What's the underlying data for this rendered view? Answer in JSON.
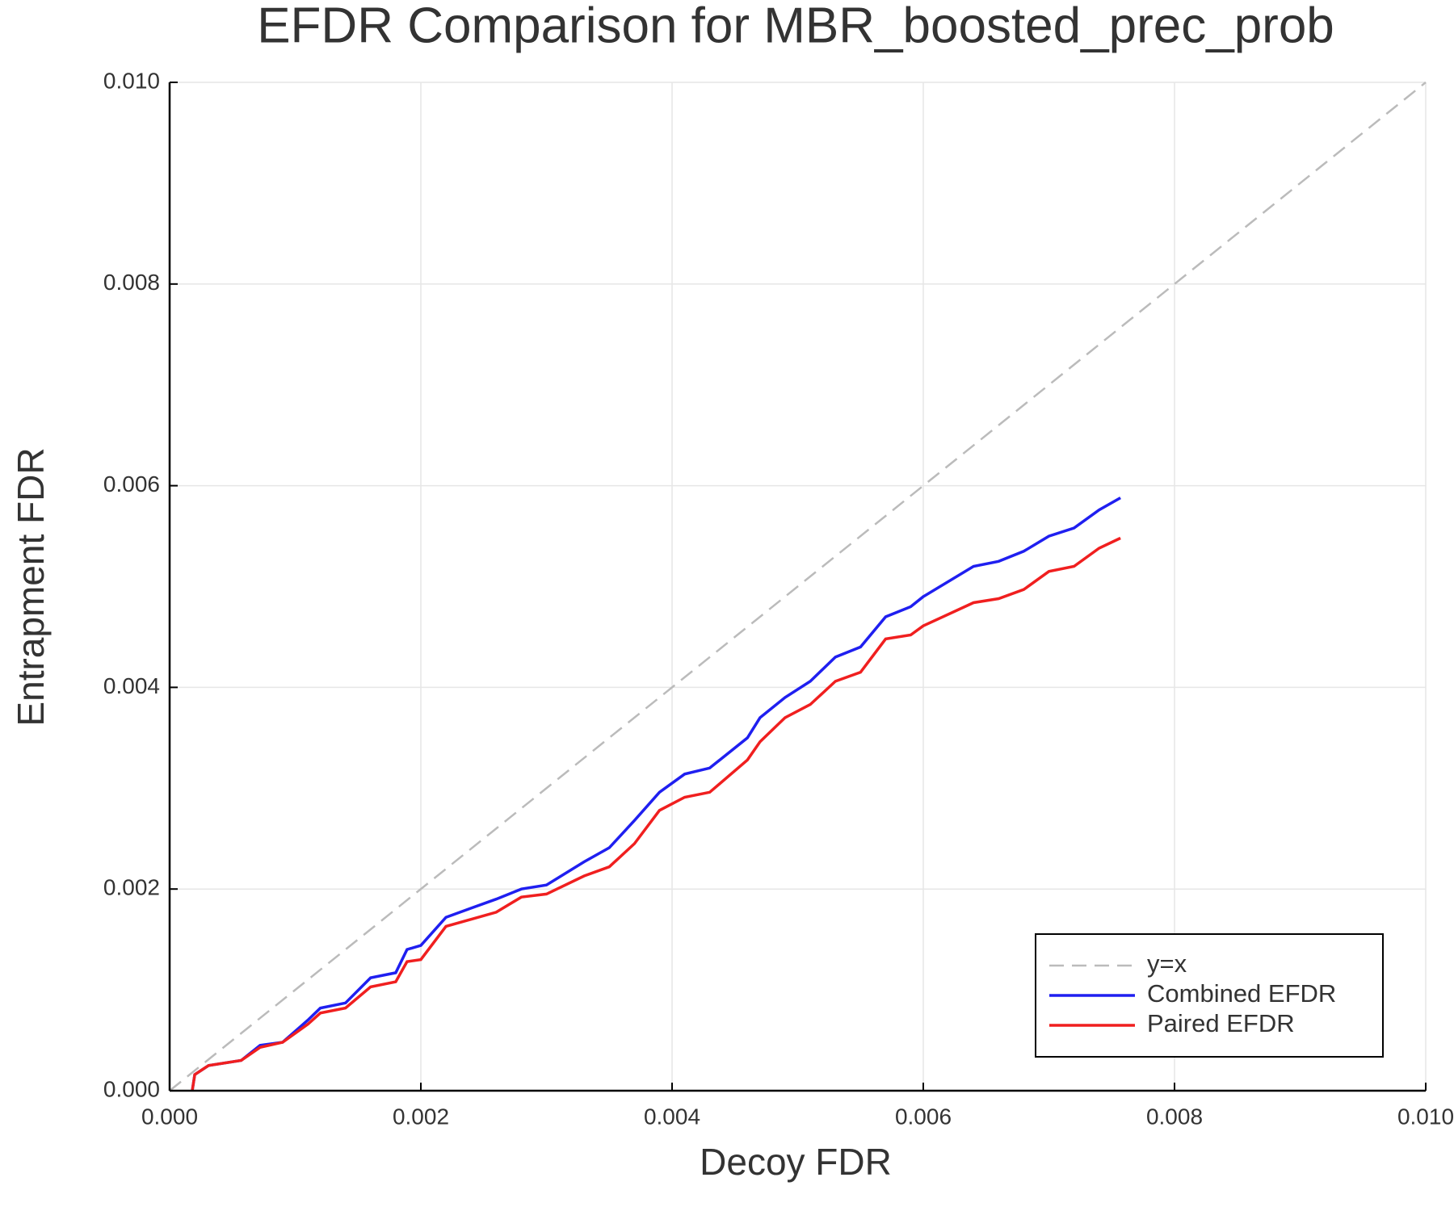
{
  "chart_data": {
    "type": "line",
    "title": "EFDR Comparison for MBR_boosted_prec_prob",
    "x_label": "Decoy FDR",
    "y_label": "Entrapment FDR",
    "xlim": [
      0,
      0.01
    ],
    "ylim": [
      0,
      0.01
    ],
    "xticks": [
      {
        "value": 0,
        "label": "0.000"
      },
      0.002,
      0.004,
      0.006,
      0.008,
      {
        "value": 0.01,
        "label": "0.010"
      }
    ],
    "yticks": [
      {
        "value": 0,
        "label": "0.000"
      },
      0.002,
      0.004,
      0.006,
      0.008,
      {
        "value": 0.01,
        "label": "0.010"
      }
    ],
    "grid": true,
    "legend": "lower right",
    "series": [
      {
        "name": "y=x",
        "color": "#bbbbbb",
        "dashed": true,
        "x": [
          0,
          0.01
        ],
        "values": [
          0,
          0.01
        ]
      },
      {
        "name": "Combined EFDR",
        "color": "#1f1ff0",
        "x": [
          0.00018,
          0.0002,
          0.00031,
          0.00057,
          0.00072,
          0.0009,
          0.0011,
          0.0012,
          0.0014,
          0.0016,
          0.0018,
          0.00189,
          0.002,
          0.0022,
          0.0024,
          0.0026,
          0.0028,
          0.003,
          0.0033,
          0.0035,
          0.0037,
          0.0039,
          0.0041,
          0.0043,
          0.0046,
          0.0047,
          0.0049,
          0.0051,
          0.0053,
          0.0055,
          0.0057,
          0.0059,
          0.006,
          0.0064,
          0.0066,
          0.0068,
          0.007,
          0.0072,
          0.0074,
          0.00757
        ],
        "values": [
          0,
          0.00016,
          0.00025,
          0.0003,
          0.00045,
          0.00048,
          0.0007,
          0.00082,
          0.00087,
          0.00112,
          0.00117,
          0.0014,
          0.00144,
          0.00172,
          0.00181,
          0.0019,
          0.002,
          0.00204,
          0.00227,
          0.00241,
          0.00268,
          0.00296,
          0.00314,
          0.0032,
          0.0035,
          0.0037,
          0.0039,
          0.00406,
          0.0043,
          0.0044,
          0.0047,
          0.0048,
          0.0049,
          0.0052,
          0.00525,
          0.00535,
          0.0055,
          0.00558,
          0.00576,
          0.00588
        ]
      },
      {
        "name": "Paired EFDR",
        "color": "#f01f1f",
        "x": [
          0.00018,
          0.0002,
          0.00031,
          0.00057,
          0.00072,
          0.0009,
          0.0011,
          0.0012,
          0.0014,
          0.0016,
          0.0018,
          0.00189,
          0.002,
          0.0022,
          0.0024,
          0.0026,
          0.0028,
          0.003,
          0.0033,
          0.0035,
          0.0037,
          0.0039,
          0.0041,
          0.0043,
          0.0046,
          0.0047,
          0.0049,
          0.0051,
          0.0053,
          0.0055,
          0.0057,
          0.0059,
          0.006,
          0.0064,
          0.0066,
          0.0068,
          0.007,
          0.0072,
          0.0074,
          0.00757
        ],
        "values": [
          0,
          0.00016,
          0.00025,
          0.0003,
          0.00043,
          0.00048,
          0.00066,
          0.00077,
          0.00082,
          0.00103,
          0.00108,
          0.00128,
          0.0013,
          0.00163,
          0.0017,
          0.00177,
          0.00192,
          0.00195,
          0.00213,
          0.00222,
          0.00245,
          0.00278,
          0.00291,
          0.00296,
          0.00328,
          0.00346,
          0.0037,
          0.00383,
          0.00406,
          0.00415,
          0.00448,
          0.00452,
          0.00461,
          0.00484,
          0.00488,
          0.00497,
          0.00515,
          0.0052,
          0.00538,
          0.00548
        ]
      }
    ]
  }
}
